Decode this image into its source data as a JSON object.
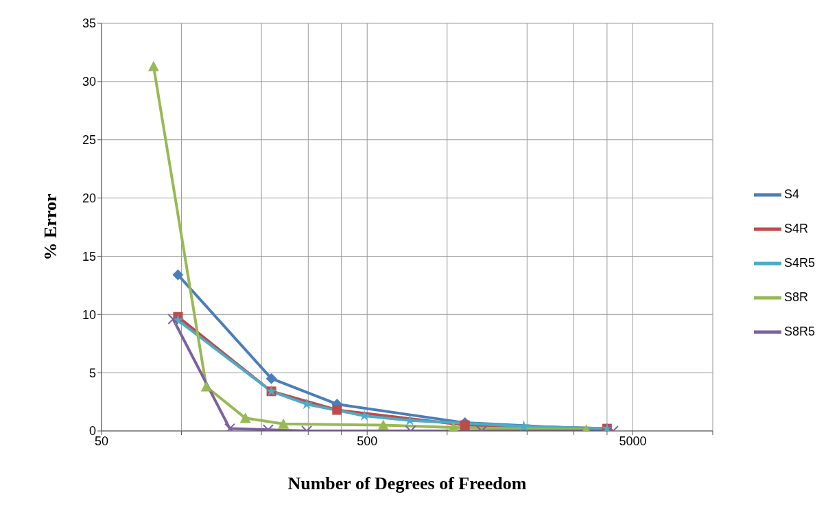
{
  "chart_data": {
    "type": "line",
    "xlabel": "Number of Degrees of Freedom",
    "ylabel": "% Error",
    "log": "x",
    "xlim": [
      50,
      10000
    ],
    "xticks": [
      50,
      {
        "value": 100,
        "label": null
      },
      {
        "value": 200,
        "label": null
      },
      {
        "value": 300,
        "label": null
      },
      {
        "value": 400,
        "label": null
      },
      500,
      {
        "value": 1000,
        "label": null
      },
      {
        "value": 2000,
        "label": null
      },
      {
        "value": 3000,
        "label": null
      },
      {
        "value": 4000,
        "label": null
      },
      5000,
      {
        "value": 10000,
        "label": null
      }
    ],
    "ylim": [
      0,
      35
    ],
    "yticks": [
      0,
      5,
      10,
      15,
      20,
      25,
      30,
      35
    ],
    "grid": true,
    "legend": "right",
    "line_style": "solid",
    "series": [
      {
        "name": "S4",
        "color": "#4a7ebb",
        "marker": "diamond",
        "x": [
          97,
          218,
          385,
          1167,
          4000
        ],
        "values": [
          13.4,
          4.5,
          2.3,
          0.7,
          0.1
        ]
      },
      {
        "name": "S4R",
        "color": "#be4b48",
        "marker": "square",
        "x": [
          97,
          218,
          385,
          1167,
          4000
        ],
        "values": [
          9.8,
          3.4,
          1.8,
          0.5,
          0.2
        ]
      },
      {
        "name": "S4R5",
        "color": "#4bacc6",
        "marker": "star",
        "x": [
          97,
          218,
          296,
          488,
          724,
          1945,
          4000
        ],
        "values": [
          9.5,
          3.4,
          2.3,
          1.3,
          0.9,
          0.4,
          0.2
        ]
      },
      {
        "name": "S8R",
        "color": "#98b954",
        "marker": "triangle",
        "x": [
          78.5,
          124,
          174,
          242,
          575,
          1057,
          3342
        ],
        "values": [
          31.3,
          3.8,
          1.1,
          0.6,
          0.5,
          0.3,
          0.1
        ]
      },
      {
        "name": "S8R5",
        "color": "#7d60a0",
        "marker": "cross",
        "x": [
          93,
          152,
          212,
          296,
          729,
          1349,
          4217
        ],
        "values": [
          9.6,
          0.2,
          0.1,
          0,
          0,
          0,
          0
        ]
      }
    ]
  }
}
